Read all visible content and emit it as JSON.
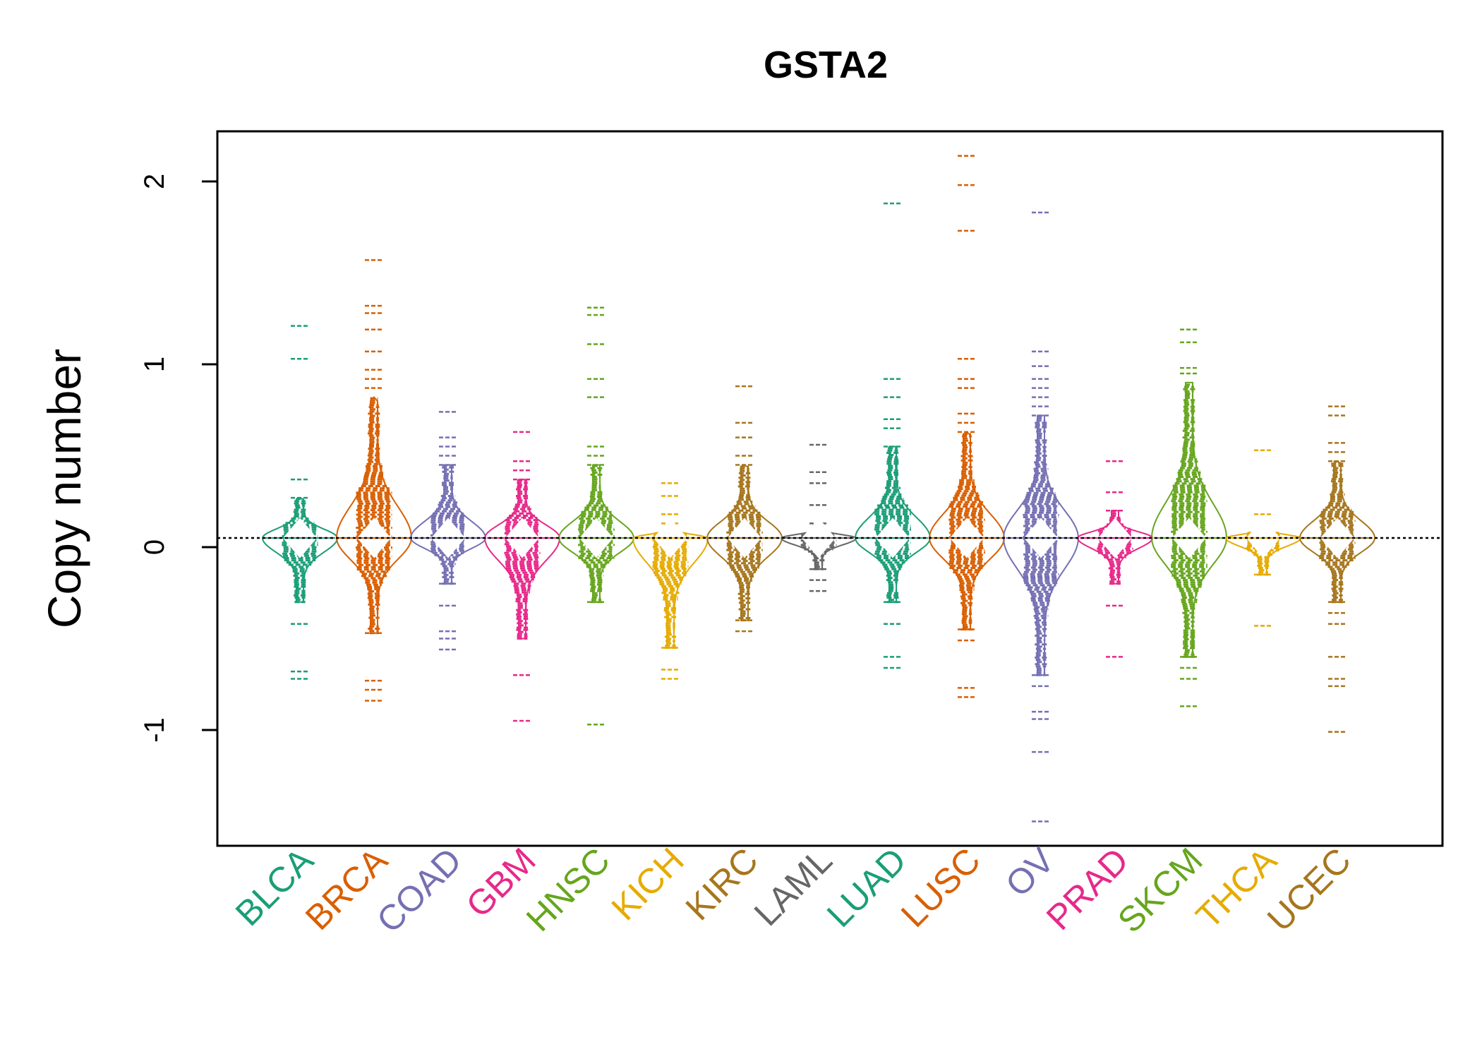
{
  "chart_data": {
    "type": "beanplot",
    "title": "GSTA2",
    "ylabel": "Copy number",
    "xlabel": "",
    "ylim": [
      -1.6,
      2.25
    ],
    "yticks": [
      -1,
      0,
      1,
      2
    ],
    "reference_line": 0.05,
    "grid": false,
    "series": [
      {
        "name": "BLCA",
        "color": "#1B9E77",
        "min": -0.72,
        "max": 1.21,
        "core_low": -0.3,
        "core_high": 0.27,
        "outliers": [
          -0.72,
          -0.68,
          1.03,
          1.21
        ]
      },
      {
        "name": "BRCA",
        "color": "#D95F02",
        "min": -0.84,
        "max": 1.57,
        "core_low": -0.47,
        "core_high": 0.82,
        "outliers": [
          -0.84,
          -0.78,
          -0.73,
          1.07,
          1.19,
          1.28,
          1.32,
          1.57
        ]
      },
      {
        "name": "COAD",
        "color": "#7570B3",
        "min": -0.56,
        "max": 0.74,
        "core_low": -0.2,
        "core_high": 0.45,
        "outliers": [
          -0.56,
          -0.5,
          -0.46,
          0.74
        ]
      },
      {
        "name": "GBM",
        "color": "#E7298A",
        "min": -0.95,
        "max": 0.63,
        "core_low": -0.5,
        "core_high": 0.37,
        "outliers": [
          -0.95,
          -0.7,
          0.63
        ]
      },
      {
        "name": "HNSC",
        "color": "#66A61E",
        "min": -0.97,
        "max": 1.31,
        "core_low": -0.3,
        "core_high": 0.45,
        "outliers": [
          -0.97,
          0.82,
          0.92,
          1.11,
          1.27,
          1.31
        ]
      },
      {
        "name": "KICH",
        "color": "#E6AB02",
        "min": -0.72,
        "max": 0.35,
        "core_low": -0.55,
        "core_high": 0.13,
        "outliers": [
          -0.72,
          0.35
        ]
      },
      {
        "name": "KIRC",
        "color": "#A6761D",
        "min": -0.67,
        "max": 0.88,
        "core_low": -0.4,
        "core_high": 0.45,
        "outliers": [
          0.68,
          0.88
        ]
      },
      {
        "name": "LAML",
        "color": "#666666",
        "min": -0.25,
        "max": 0.56,
        "core_low": -0.12,
        "core_high": 0.13,
        "outliers": [
          0.35,
          0.41,
          0.56
        ]
      },
      {
        "name": "LUAD",
        "color": "#1B9E77",
        "min": -0.66,
        "max": 1.88,
        "core_low": -0.3,
        "core_high": 0.55,
        "outliers": [
          -0.66,
          -0.6,
          0.82,
          0.92,
          1.88
        ]
      },
      {
        "name": "LUSC",
        "color": "#D95F02",
        "min": -0.82,
        "max": 2.14,
        "core_low": -0.45,
        "core_high": 0.63,
        "outliers": [
          -0.82,
          -0.77,
          0.87,
          0.92,
          1.03,
          1.73,
          1.98,
          2.14
        ]
      },
      {
        "name": "OV",
        "color": "#7570B3",
        "min": -1.5,
        "max": 1.83,
        "core_low": -0.7,
        "core_high": 0.72,
        "outliers": [
          -1.5,
          -1.12,
          -0.94,
          -0.9,
          0.92,
          0.99,
          1.07,
          1.83
        ]
      },
      {
        "name": "PRAD",
        "color": "#E7298A",
        "min": -0.6,
        "max": 0.47,
        "core_low": -0.2,
        "core_high": 0.2,
        "outliers": [
          -0.6,
          0.47
        ]
      },
      {
        "name": "SKCM",
        "color": "#66A61E",
        "min": -0.87,
        "max": 1.19,
        "core_low": -0.6,
        "core_high": 0.9,
        "outliers": [
          -0.87,
          0.98,
          1.12,
          1.19
        ]
      },
      {
        "name": "THCA",
        "color": "#E6AB02",
        "min": -0.43,
        "max": 0.53,
        "core_low": -0.15,
        "core_high": 0.13,
        "outliers": [
          -0.43,
          0.53
        ]
      },
      {
        "name": "UCEC",
        "color": "#A6761D",
        "min": -1.01,
        "max": 0.77,
        "core_low": -0.3,
        "core_high": 0.47,
        "outliers": [
          -1.01,
          -0.76,
          -0.72,
          -0.6,
          0.72,
          0.77
        ]
      }
    ]
  }
}
